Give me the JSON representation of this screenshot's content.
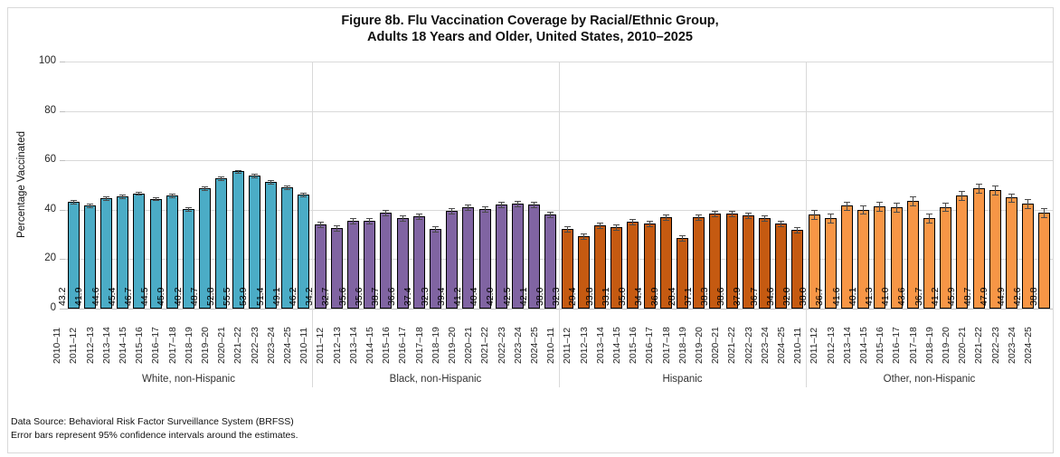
{
  "figure": {
    "title_line1": "Figure 8b. Flu Vaccination Coverage by Racial/Ethnic Group,",
    "title_line2": "Adults 18 Years and Older, United States, 2010–2025",
    "footnote_line1": "Data Source: Behavioral Risk Factor Surveillance System (BRFSS)",
    "footnote_line2": "Error bars represent 95% confidence intervals around the estimates."
  },
  "chart_data": {
    "type": "bar",
    "title": "Figure 8b. Flu Vaccination Coverage by Racial/Ethnic Group, Adults 18 Years and Older, United States, 2010–2025",
    "xlabel": "",
    "ylabel": "Percentage Vaccinated",
    "ylim": [
      0,
      100
    ],
    "yticks": [
      0,
      20,
      40,
      60,
      80,
      100
    ],
    "grid": true,
    "legend_position": "none",
    "value_labels": "inside-base-rotated-90",
    "error_bars": "95% confidence intervals (unlabeled, half-widths estimated from pixels)",
    "categories": [
      "2010–11",
      "2011–12",
      "2012–13",
      "2013–14",
      "2014–15",
      "2015–16",
      "2016–17",
      "2017–18",
      "2018–19",
      "2019–20",
      "2020–21",
      "2021–22",
      "2022–23",
      "2023–24",
      "2024–25"
    ],
    "series": [
      {
        "name": "White, non-Hispanic",
        "color": "#4BACC6",
        "values": [
          43.2,
          41.9,
          44.6,
          45.4,
          46.7,
          44.5,
          45.9,
          40.2,
          48.7,
          52.8,
          55.5,
          53.9,
          51.4,
          49.1,
          46.2
        ],
        "ci_halfwidth_est": 0.7
      },
      {
        "name": "Black, non-Hispanic",
        "color": "#8064A2",
        "values": [
          34.2,
          32.7,
          35.6,
          35.6,
          38.7,
          36.6,
          37.4,
          32.3,
          39.4,
          41.2,
          40.4,
          42.0,
          42.5,
          42.1,
          38.0
        ],
        "ci_halfwidth_est": 1.1
      },
      {
        "name": "Hispanic",
        "color": "#C55A11",
        "values": [
          32.3,
          29.4,
          33.8,
          33.1,
          35.0,
          34.4,
          36.9,
          28.4,
          37.1,
          38.3,
          38.6,
          37.9,
          36.7,
          34.6,
          32.0
        ],
        "ci_halfwidth_est": 1.1
      },
      {
        "name": "Other, non-Hispanic",
        "color": "#F79646",
        "values": [
          38.0,
          36.7,
          41.6,
          40.1,
          41.3,
          41.0,
          43.6,
          36.7,
          41.2,
          45.9,
          48.7,
          47.9,
          44.9,
          42.6,
          38.8
        ],
        "ci_halfwidth_est": 1.8
      }
    ]
  }
}
